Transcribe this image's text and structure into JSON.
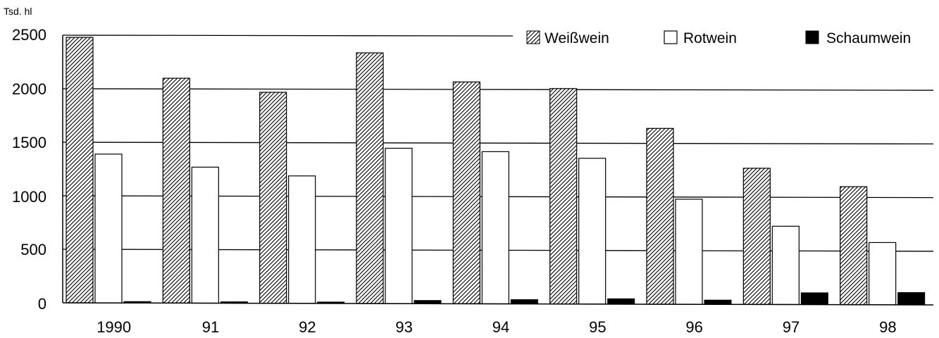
{
  "chart_data": {
    "type": "bar",
    "unit_label": "Tsd. hl",
    "categories": [
      "1990",
      "91",
      "92",
      "93",
      "94",
      "95",
      "96",
      "97",
      "98"
    ],
    "series": [
      {
        "name": "Weißwein",
        "values": [
          2480,
          2100,
          1970,
          2340,
          2070,
          2010,
          1640,
          1270,
          1100
        ],
        "pattern": "hatch",
        "color": "#000000"
      },
      {
        "name": "Rotwein",
        "values": [
          1390,
          1270,
          1190,
          1450,
          1420,
          1360,
          980,
          730,
          580
        ],
        "pattern": "white",
        "color": "#ffffff"
      },
      {
        "name": "Schaumwein",
        "values": [
          5,
          8,
          5,
          30,
          40,
          50,
          40,
          110,
          115
        ],
        "pattern": "solid",
        "color": "#000000"
      }
    ],
    "yticks": [
      "2500",
      "2000",
      "1500",
      "1000",
      "500",
      "0"
    ],
    "ylim": [
      0,
      2500
    ],
    "grid": true,
    "legend_position": "top-right"
  }
}
